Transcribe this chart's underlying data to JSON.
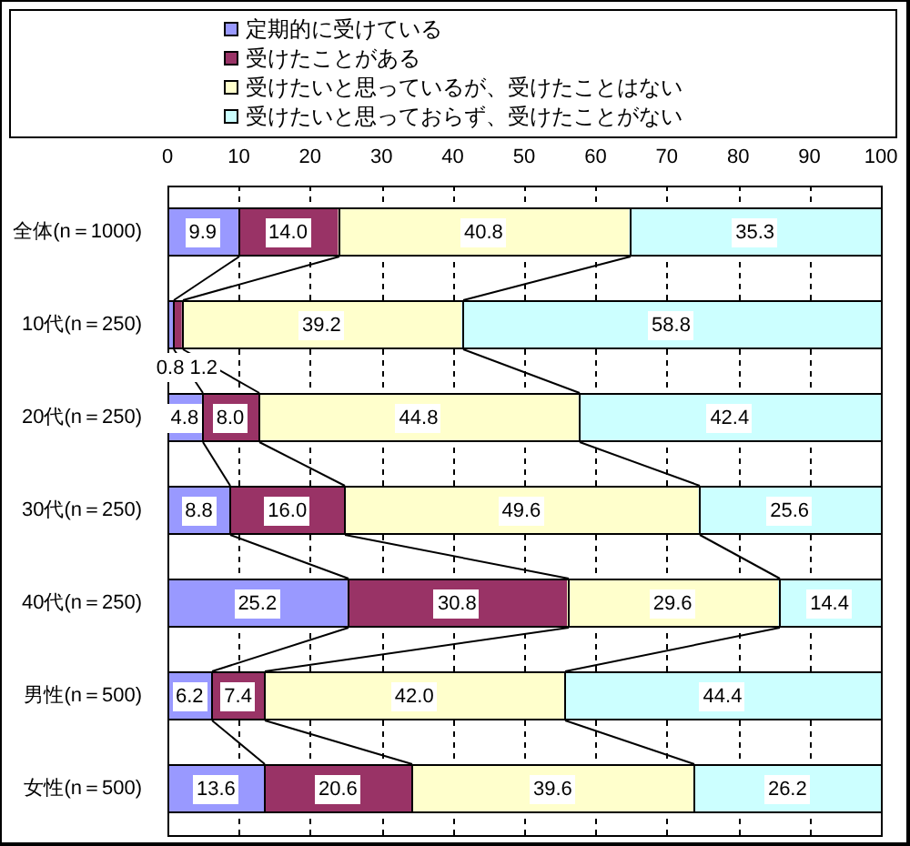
{
  "chart_data": {
    "type": "bar",
    "orientation": "horizontal",
    "stacked": true,
    "categories": [
      "全体(n＝1000)",
      "10代(n＝250)",
      "20代(n＝250)",
      "30代(n＝250)",
      "40代(n＝250)",
      "男性(n＝500)",
      "女性(n＝500)"
    ],
    "series": [
      {
        "name": "定期的に受けている",
        "color": "#9999ff",
        "values": [
          9.9,
          0.8,
          4.8,
          8.8,
          25.2,
          6.2,
          13.6
        ],
        "value_labels": [
          "9.9",
          "0.8",
          "4.8",
          "8.8",
          "25.2",
          "6.2",
          "13.6"
        ]
      },
      {
        "name": "受けたことがある",
        "color": "#993366",
        "values": [
          14.0,
          1.2,
          8.0,
          16.0,
          30.8,
          7.4,
          20.6
        ],
        "value_labels": [
          "14.0",
          "1.2",
          "8.0",
          "16.0",
          "30.8",
          "7.4",
          "20.6"
        ]
      },
      {
        "name": "受けたいと思っているが、受けたことはない",
        "color": "#ffffcc",
        "values": [
          40.8,
          39.2,
          44.8,
          49.6,
          29.6,
          42.0,
          39.6
        ],
        "value_labels": [
          "40.8",
          "39.2",
          "44.8",
          "49.6",
          "29.6",
          "42.0",
          "39.6"
        ]
      },
      {
        "name": "受けたいと思っておらず、受けたことがない",
        "color": "#ccffff",
        "values": [
          35.3,
          58.8,
          42.4,
          25.6,
          14.4,
          44.4,
          26.2
        ],
        "value_labels": [
          "35.3",
          "58.8",
          "42.4",
          "25.6",
          "14.4",
          "44.4",
          "26.2"
        ]
      }
    ],
    "xlim": [
      0,
      100
    ],
    "xticks": [
      0,
      10,
      20,
      30,
      40,
      50,
      60,
      70,
      80,
      90,
      100
    ],
    "grid": "x",
    "legend": "top"
  }
}
